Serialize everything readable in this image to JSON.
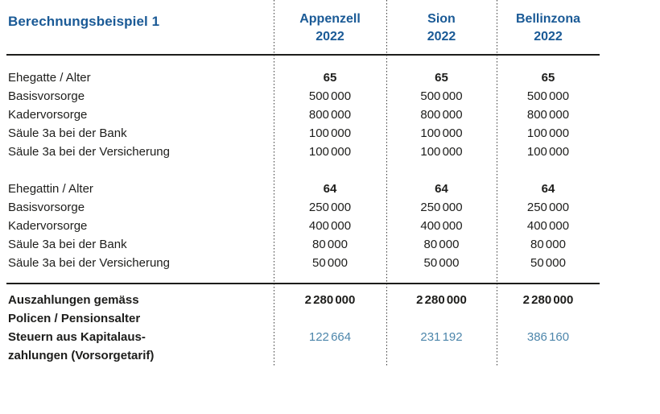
{
  "colors": {
    "heading_blue": "#1a5a96",
    "tax_value_blue": "#4d86ab",
    "text_color": "#1d1d1b"
  },
  "table": {
    "title": "Berechnungsbeispiel 1",
    "columns": [
      {
        "name": "Appenzell",
        "year": "2022"
      },
      {
        "name": "Sion",
        "year": "2022"
      },
      {
        "name": "Bellinzona",
        "year": "2022"
      }
    ],
    "sections": [
      {
        "rows": [
          {
            "label": "Ehegatte / Alter",
            "values": [
              "65",
              "65",
              "65"
            ],
            "emphasis": "bold"
          },
          {
            "label": "Basisvorsorge",
            "values": [
              "500 000",
              "500 000",
              "500 000"
            ],
            "emphasis": "normal"
          },
          {
            "label": "Kadervorsorge",
            "values": [
              "800 000",
              "800 000",
              "800 000"
            ],
            "emphasis": "normal"
          },
          {
            "label": "Säule 3a bei der Bank",
            "values": [
              "100 000",
              "100 000",
              "100 000"
            ],
            "emphasis": "normal"
          },
          {
            "label": "Säule 3a bei der Versicherung",
            "values": [
              "100 000",
              "100 000",
              "100 000"
            ],
            "emphasis": "normal"
          }
        ]
      },
      {
        "rows": [
          {
            "label": "Ehegattin / Alter",
            "values": [
              "64",
              "64",
              "64"
            ],
            "emphasis": "bold"
          },
          {
            "label": "Basisvorsorge",
            "values": [
              "250 000",
              "250 000",
              "250 000"
            ],
            "emphasis": "normal"
          },
          {
            "label": "Kadervorsorge",
            "values": [
              "400 000",
              "400 000",
              "400 000"
            ],
            "emphasis": "normal"
          },
          {
            "label": "Säule 3a bei der Bank",
            "values": [
              "80 000",
              "80 000",
              "80 000"
            ],
            "emphasis": "normal"
          },
          {
            "label": "Säule 3a bei der Versicherung",
            "values": [
              "50 000",
              "50 000",
              "50 000"
            ],
            "emphasis": "normal"
          }
        ]
      }
    ],
    "summary_rows": [
      {
        "label_lines": [
          "Auszahlungen gemäss",
          "Policen / Pensionsalter"
        ],
        "values": [
          "2 280 000",
          "2 280 000",
          "2 280 000"
        ],
        "emphasis": "bold"
      },
      {
        "label_lines": [
          "Steuern aus Kapitalaus-",
          "zahlungen (Vorsorgetarif)"
        ],
        "values": [
          "122 664",
          "231 192",
          "386 160"
        ],
        "emphasis": "tax"
      }
    ]
  }
}
